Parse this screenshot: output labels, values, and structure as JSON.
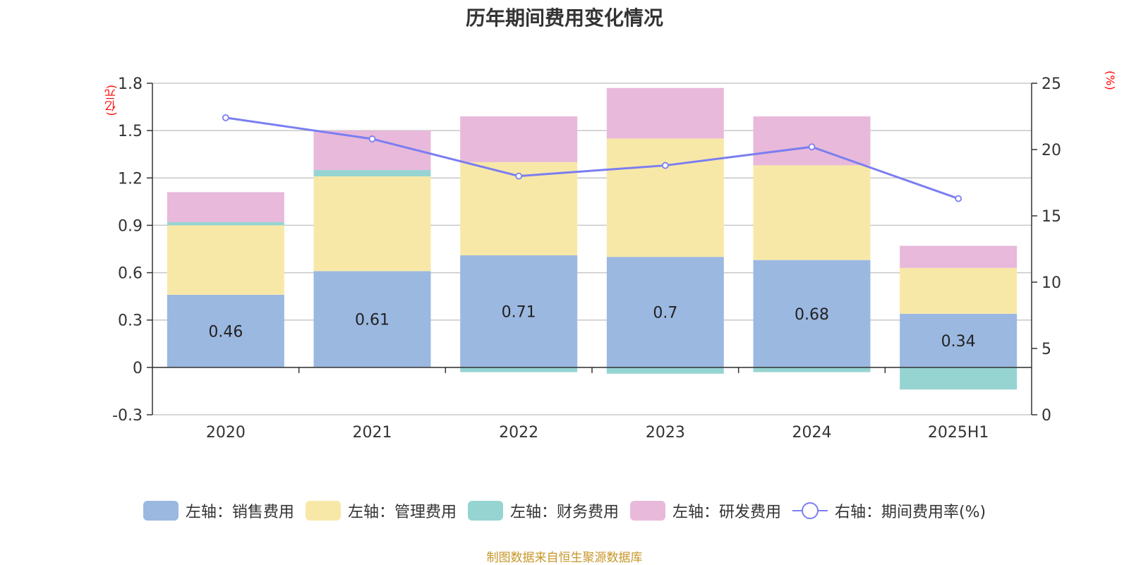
{
  "title": "历年期间费用变化情况",
  "source": "制图数据来自恒生聚源数据库",
  "colors": {
    "sales": "#9bb8e1",
    "admin": "#f8e8a8",
    "finance": "#96d4d2",
    "rd": "#e8b9da",
    "rate": "#7b7ef0",
    "unit": "#ff0000",
    "source": "#c8962a"
  },
  "chart_data": {
    "type": "bar",
    "stacked": true,
    "categories": [
      "2020",
      "2021",
      "2022",
      "2023",
      "2024",
      "2025H1"
    ],
    "left_axis": {
      "unit": "(亿元)",
      "ylim": [
        -0.3,
        1.8
      ],
      "ticks": [
        "1.8",
        "1.5",
        "1.2",
        "0.9",
        "0.6",
        "0.3",
        "0",
        "-0.3"
      ]
    },
    "right_axis": {
      "unit": "(%)",
      "ylim": [
        0,
        25
      ],
      "ticks": [
        "25",
        "20",
        "15",
        "10",
        "5",
        "0"
      ]
    },
    "series": [
      {
        "name": "左轴：销售费用",
        "key": "sales",
        "axis": "left",
        "type": "bar",
        "values": [
          0.46,
          0.61,
          0.71,
          0.7,
          0.68,
          0.34
        ],
        "data_labels": [
          "0.46",
          "0.61",
          "0.71",
          "0.7",
          "0.68",
          "0.34"
        ]
      },
      {
        "name": "左轴：管理费用",
        "key": "admin",
        "axis": "left",
        "type": "bar",
        "values": [
          0.44,
          0.6,
          0.59,
          0.75,
          0.6,
          0.29
        ]
      },
      {
        "name": "左轴：财务费用",
        "key": "finance",
        "axis": "left",
        "type": "bar",
        "values": [
          0.02,
          0.04,
          -0.03,
          -0.04,
          -0.03,
          -0.14
        ]
      },
      {
        "name": "左轴：研发费用",
        "key": "rd",
        "axis": "left",
        "type": "bar",
        "values": [
          0.19,
          0.25,
          0.29,
          0.32,
          0.31,
          0.14
        ]
      },
      {
        "name": "右轴：期间费用率(%)",
        "key": "rate",
        "axis": "right",
        "type": "line",
        "values": [
          22.4,
          20.8,
          18.0,
          18.8,
          20.2,
          16.3
        ]
      }
    ],
    "grid": true,
    "legend_position": "bottom"
  }
}
